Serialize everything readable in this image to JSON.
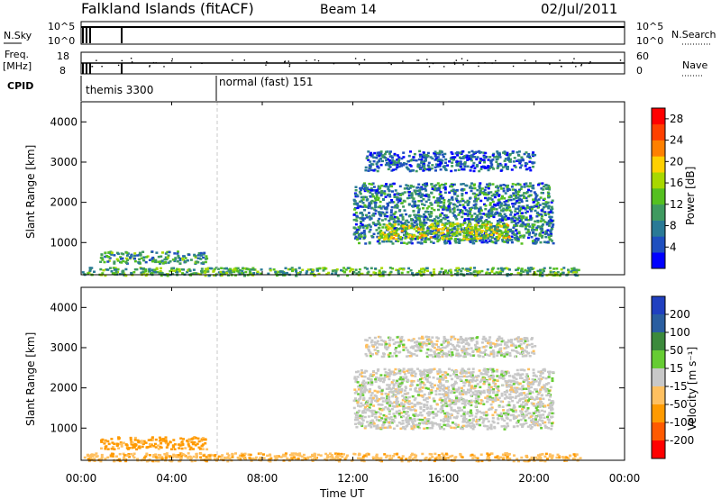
{
  "header": {
    "title": "Falkland Islands (fitACF)",
    "beam": "Beam 14",
    "date": "02/Jul/2011"
  },
  "status_panels": {
    "nsky": {
      "label": "N.Sky",
      "ticks": [
        "10^5",
        "10^0"
      ]
    },
    "nsearch": {
      "label": "N.Search",
      "ticks": [
        "10^5",
        "10^0"
      ]
    },
    "freq": {
      "label_line1": "Freq.",
      "label_line2": "[MHz]",
      "ticks": [
        "18",
        "8"
      ]
    },
    "nave": {
      "label": "Nave",
      "ticks": [
        "60",
        "0"
      ]
    },
    "cpid": {
      "label": "CPID",
      "modes": [
        {
          "name": "themis 3300",
          "start_hour": 0.0
        },
        {
          "name": "normal (fast) 151",
          "start_hour": 6.0
        }
      ]
    }
  },
  "colors": {
    "power": [
      "#0000ff",
      "#1f4fbf",
      "#2a7a96",
      "#3f9a60",
      "#55c020",
      "#a8d800",
      "#ffd000",
      "#ff8000",
      "#ff4000",
      "#ff0000"
    ],
    "velocity": [
      "#2040c0",
      "#2a5ea0",
      "#3c8a3c",
      "#66cc33",
      "#c8c8c8",
      "#ffc060",
      "#ff9a00",
      "#ff5a00",
      "#ff0000"
    ]
  },
  "chart_data": [
    {
      "type": "heatmap",
      "name": "power",
      "ylabel": "Slant Range [km]",
      "yticks": [
        "1000",
        "2000",
        "3000",
        "4000"
      ],
      "ylim": [
        200,
        4500
      ],
      "xlim": [
        0,
        24
      ],
      "xticks": [
        "00:00",
        "04:00",
        "08:00",
        "12:00",
        "16:00",
        "20:00",
        "00:00"
      ],
      "colorbar": {
        "label": "Power [dB]",
        "ticks": [
          "4",
          "8",
          "12",
          "16",
          "20",
          "24",
          "28"
        ],
        "range": [
          0,
          30
        ]
      },
      "regions": [
        {
          "t0": 12.0,
          "t1": 20.8,
          "r0": 1000,
          "r1": 2500,
          "level": 8
        },
        {
          "t0": 13.0,
          "t1": 19.0,
          "r0": 1100,
          "r1": 1500,
          "level": 16
        },
        {
          "t0": 12.5,
          "t1": 20.0,
          "r0": 2800,
          "r1": 3300,
          "level": 6
        },
        {
          "t0": 0.8,
          "t1": 5.5,
          "r0": 500,
          "r1": 800,
          "level": 10
        },
        {
          "t0": 0.0,
          "t1": 22.0,
          "r0": 200,
          "r1": 400,
          "level": 12
        }
      ]
    },
    {
      "type": "heatmap",
      "name": "velocity",
      "ylabel": "Slant Range [km]",
      "yticks": [
        "1000",
        "2000",
        "3000",
        "4000"
      ],
      "ylim": [
        200,
        4500
      ],
      "xlim": [
        0,
        24
      ],
      "xlabel": "Time UT",
      "xticks": [
        "00:00",
        "04:00",
        "08:00",
        "12:00",
        "16:00",
        "20:00",
        "00:00"
      ],
      "colorbar": {
        "label": "Velocity [m s⁻¹]",
        "ticks": [
          "200",
          "100",
          "50",
          "15",
          "-15",
          "-50",
          "-100",
          "-200"
        ]
      },
      "regions": [
        {
          "t0": 12.0,
          "t1": 20.8,
          "r0": 1000,
          "r1": 2500,
          "velocity": 0
        },
        {
          "t0": 12.5,
          "t1": 20.0,
          "r0": 2800,
          "r1": 3300,
          "velocity": 0
        },
        {
          "t0": 0.8,
          "t1": 5.5,
          "r0": 500,
          "r1": 800,
          "velocity": -60
        },
        {
          "t0": 0.0,
          "t1": 22.0,
          "r0": 200,
          "r1": 400,
          "velocity": -40
        }
      ]
    }
  ]
}
